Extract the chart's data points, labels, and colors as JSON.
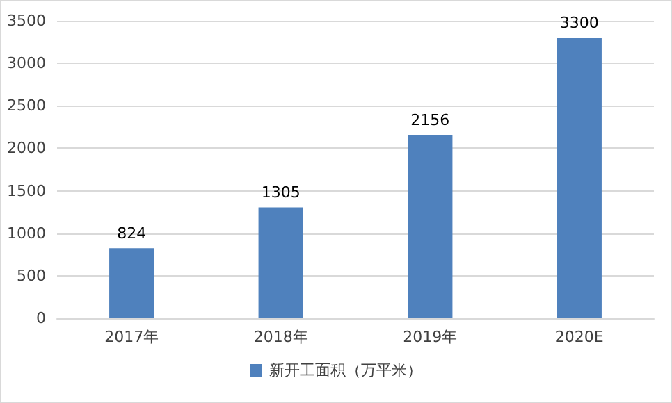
{
  "chart_data": {
    "type": "bar",
    "categories": [
      "2017年",
      "2018年",
      "2019年",
      "2020E"
    ],
    "series": [
      {
        "name": "新开工面积（万平米）",
        "color": "#4f81bd",
        "values": [
          824,
          1305,
          2156,
          3300
        ]
      }
    ],
    "ylim": [
      0,
      3500
    ],
    "yticks": [
      0,
      500,
      1000,
      1500,
      2000,
      2500,
      3000,
      3500
    ],
    "grid": "y",
    "legend": "bottom",
    "data_labels": true
  }
}
